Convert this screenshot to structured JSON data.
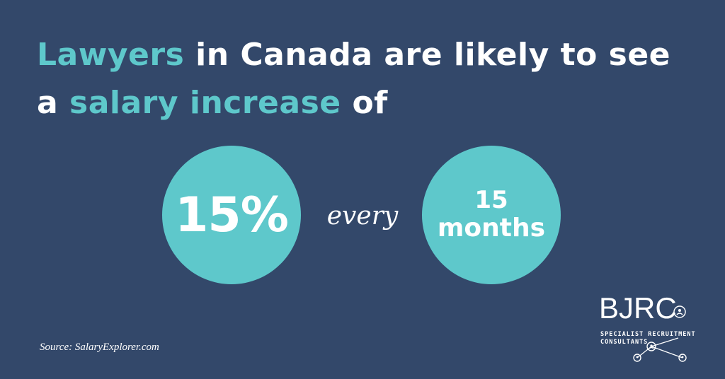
{
  "headline": {
    "w1": "Lawyers",
    "w2": " in Canada are likely to see",
    "w3": "a ",
    "w4": "salary increase",
    "w5": " of"
  },
  "stat": {
    "percent": "15%",
    "connector": "every",
    "period_number": "15",
    "period_unit": "months"
  },
  "source": "Source: SalaryExplorer.com",
  "logo": {
    "letters": "BJRC",
    "tagline_1": "SPECIALIST RECRUITMENT",
    "tagline_2": "CONSULTANTS"
  },
  "colors": {
    "background": "#33486a",
    "accent": "#5ec8cb",
    "text": "#ffffff"
  }
}
